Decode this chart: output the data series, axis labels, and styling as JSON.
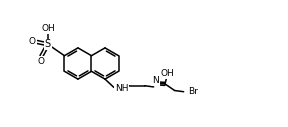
{
  "bg": "#ffffff",
  "lc": "#000000",
  "lw": 1.1,
  "fs": 6.5,
  "figsize": [
    2.88,
    1.27
  ],
  "dpi": 100,
  "xlim": [
    0,
    9.5
  ],
  "ylim": [
    0,
    3.5
  ]
}
